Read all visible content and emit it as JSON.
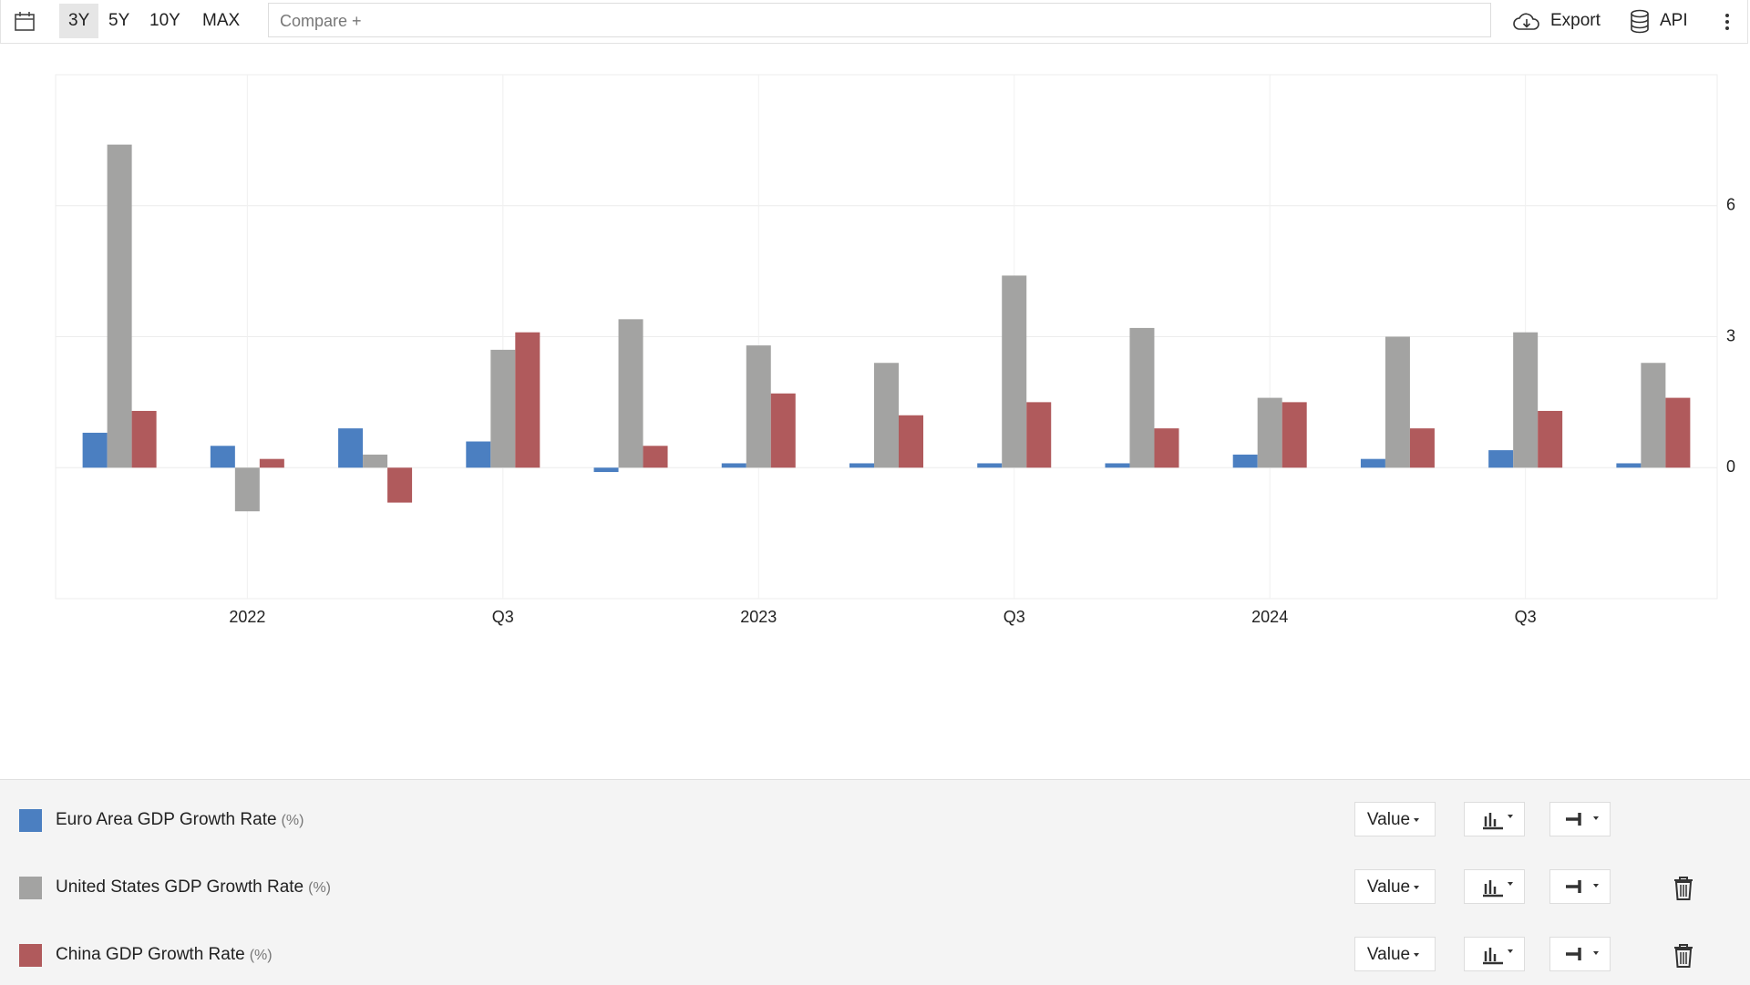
{
  "toolbar": {
    "ranges": [
      "3Y",
      "5Y",
      "10Y",
      "MAX"
    ],
    "active": 0,
    "compare": "Compare +",
    "export": "Export",
    "api": "API"
  },
  "chart_data": {
    "type": "bar",
    "categories": [
      null,
      "2022",
      null,
      "Q3",
      null,
      "2023",
      null,
      "Q3",
      null,
      "2024",
      null,
      "Q3",
      null
    ],
    "series": [
      {
        "name": "Euro Area GDP Growth Rate",
        "unit": "(%)",
        "mode": "Value",
        "color": "#4b7fc1",
        "values": [
          0.8,
          0.5,
          0.9,
          0.6,
          -0.1,
          0.1,
          0.1,
          0.1,
          0.1,
          0.3,
          0.2,
          0.4,
          0.1
        ]
      },
      {
        "name": "United States GDP Growth Rate",
        "unit": "(%)",
        "mode": "Value",
        "color": "#a3a3a2",
        "values": [
          7.4,
          -1.0,
          0.3,
          2.7,
          3.4,
          2.8,
          2.4,
          4.4,
          3.2,
          1.6,
          3.0,
          3.1,
          2.4
        ]
      },
      {
        "name": "China GDP Growth Rate",
        "unit": "(%)",
        "mode": "Value",
        "color": "#b05a5c",
        "values": [
          1.3,
          0.2,
          -0.8,
          3.1,
          0.5,
          1.7,
          1.2,
          1.5,
          0.9,
          1.5,
          0.9,
          1.3,
          1.6
        ]
      }
    ],
    "ylim": [
      -3,
      9
    ],
    "yticks": [
      0,
      3,
      6
    ],
    "grid": true
  }
}
